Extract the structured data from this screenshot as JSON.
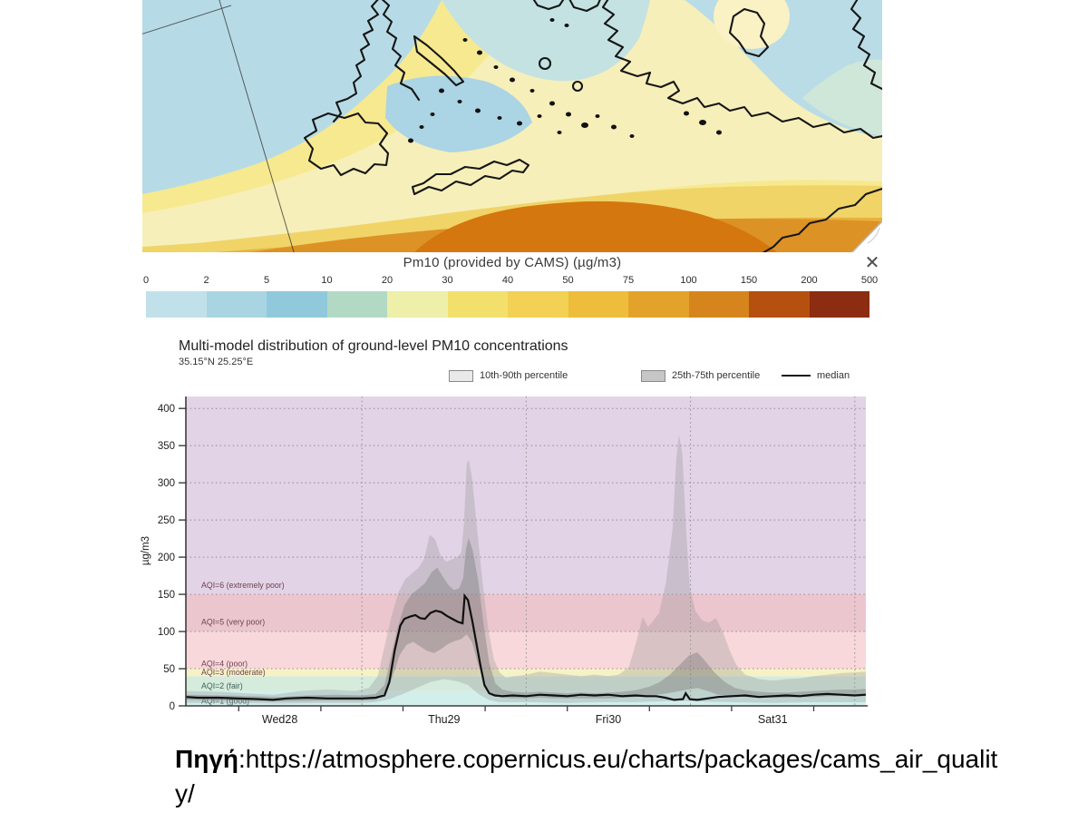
{
  "map": {
    "title": "Pm10 (provided by CAMS) (µg/m3)",
    "close_icon": "✕",
    "description": "Filled-contour PM10 forecast map over Greece, the Aegean Sea, Crete and western Turkey; low (blue) values to the north, high (orange/brown) values toward the south",
    "palette": [
      "#b7dbe6",
      "#c4e2e2",
      "#b9dce6",
      "#f7efb9",
      "#f7e98f",
      "#f0d468",
      "#e8b13d",
      "#dd9226",
      "#d4770f"
    ],
    "colorbar": {
      "labels": [
        "0",
        "2",
        "5",
        "10",
        "20",
        "30",
        "40",
        "50",
        "75",
        "100",
        "150",
        "200",
        "500"
      ],
      "colors": [
        "#c1e1ea",
        "#a9d5e2",
        "#90c9dc",
        "#b2d9c4",
        "#eeefa9",
        "#f3e06c",
        "#f2d154",
        "#edbd3b",
        "#e3a32a",
        "#d6851c",
        "#b5500f",
        "#8c2c10"
      ]
    }
  },
  "chart_data": {
    "type": "area",
    "title": "Multi-model distribution of ground-level PM10 concentrations",
    "subtitle": "35.15°N 25.25°E",
    "ylabel": "µg/m3",
    "ylim": [
      0,
      416
    ],
    "yticks": [
      0,
      50,
      100,
      150,
      200,
      250,
      300,
      350,
      400
    ],
    "ygrid": [
      50,
      100,
      150,
      200,
      250,
      300,
      350,
      400
    ],
    "x_unit": "hours from Wed 28 00:00",
    "x_domain_hours": [
      -1.7,
      97.6
    ],
    "xlabels": [
      {
        "label": "Wed28",
        "h": 12
      },
      {
        "label": "Thu29",
        "h": 36
      },
      {
        "label": "Fri30",
        "h": 60
      },
      {
        "label": "Sat31",
        "h": 84
      }
    ],
    "xticks_h": [
      6,
      18,
      30,
      42,
      54,
      66,
      78,
      90
    ],
    "day_boundaries_h": [
      24,
      48,
      72,
      96
    ],
    "grid": "dotted",
    "legend_position": "top",
    "legend": [
      {
        "label": "10th-90th percentile",
        "swatch": "#e9e9e9"
      },
      {
        "label": "25th-75th percentile",
        "swatch": "#c6c6c6"
      },
      {
        "label": "median",
        "swatch": "line"
      }
    ],
    "band_fill_10_90": "rgba(150,150,150,0.32)",
    "band_fill_25_75": "rgba(115,115,115,0.38)",
    "median_color": "#101010",
    "aqi_bands": [
      {
        "label": "AQI=1 (good)",
        "from": 0,
        "to": 20,
        "color": "#d2efec",
        "label_v": 7,
        "label_color": "#41605a"
      },
      {
        "label": "AQI=2 (fair)",
        "from": 20,
        "to": 40,
        "color": "#d5ebdc",
        "label_v": 27,
        "label_color": "#41605a"
      },
      {
        "label": "AQI=3 (moderate)",
        "from": 40,
        "to": 50,
        "color": "#f6f2c3",
        "label_v": 45,
        "label_color": "#6e4350"
      },
      {
        "label": "AQI=4 (poor)",
        "from": 50,
        "to": 100,
        "color": "#f8d8db",
        "label_v": 57,
        "label_color": "#6e4350"
      },
      {
        "label": "AQI=5 (very poor)",
        "from": 100,
        "to": 150,
        "color": "#ecc6cf",
        "label_v": 113,
        "label_color": "#6e4350"
      },
      {
        "label": "AQI=6 (extremely poor)",
        "from": 150,
        "to": 416,
        "color": "#e2d3e6",
        "label_v": 162,
        "label_color": "#6e4350"
      }
    ],
    "series": {
      "median": [
        [
          -1.7,
          12
        ],
        [
          0,
          11
        ],
        [
          3,
          11
        ],
        [
          6,
          10
        ],
        [
          9,
          9
        ],
        [
          11,
          8
        ],
        [
          13,
          10
        ],
        [
          16,
          11
        ],
        [
          19,
          10
        ],
        [
          22,
          10
        ],
        [
          24,
          10
        ],
        [
          26,
          11
        ],
        [
          27.3,
          14
        ],
        [
          28,
          32
        ],
        [
          28.8,
          75
        ],
        [
          29.6,
          108
        ],
        [
          30.2,
          117
        ],
        [
          31,
          120
        ],
        [
          31.8,
          122
        ],
        [
          32.5,
          118
        ],
        [
          33.2,
          117
        ],
        [
          34,
          125
        ],
        [
          34.8,
          128
        ],
        [
          35.6,
          126
        ],
        [
          36.4,
          121
        ],
        [
          37.2,
          117
        ],
        [
          38,
          113
        ],
        [
          38.7,
          111
        ],
        [
          39,
          148
        ],
        [
          39.5,
          142
        ],
        [
          40.1,
          115
        ],
        [
          40.7,
          85
        ],
        [
          41.3,
          55
        ],
        [
          41.9,
          28
        ],
        [
          42.6,
          17
        ],
        [
          43.4,
          14
        ],
        [
          44.5,
          13
        ],
        [
          46,
          14
        ],
        [
          48,
          13
        ],
        [
          50,
          15
        ],
        [
          52,
          14
        ],
        [
          54,
          13
        ],
        [
          56,
          15
        ],
        [
          58,
          14
        ],
        [
          60,
          15
        ],
        [
          62,
          13
        ],
        [
          64,
          14
        ],
        [
          65.5,
          13
        ],
        [
          67,
          13
        ],
        [
          68.3,
          11
        ],
        [
          69.6,
          8
        ],
        [
          70.9,
          9
        ],
        [
          71.3,
          17
        ],
        [
          71.9,
          9
        ],
        [
          73,
          8
        ],
        [
          74.5,
          10
        ],
        [
          76,
          12
        ],
        [
          78,
          13
        ],
        [
          80,
          14
        ],
        [
          82,
          12
        ],
        [
          84,
          13
        ],
        [
          86,
          14
        ],
        [
          88,
          13
        ],
        [
          90,
          15
        ],
        [
          92,
          16
        ],
        [
          94,
          15
        ],
        [
          96,
          14
        ],
        [
          97.6,
          15
        ]
      ],
      "p90": [
        [
          -1.7,
          20
        ],
        [
          3,
          19
        ],
        [
          7,
          17
        ],
        [
          11,
          15
        ],
        [
          15,
          20
        ],
        [
          19,
          22
        ],
        [
          23,
          20
        ],
        [
          25,
          24
        ],
        [
          26.3,
          40
        ],
        [
          27.3,
          80
        ],
        [
          28.3,
          120
        ],
        [
          29.3,
          152
        ],
        [
          30.3,
          170
        ],
        [
          31.3,
          178
        ],
        [
          32.3,
          186
        ],
        [
          33.1,
          198
        ],
        [
          33.9,
          230
        ],
        [
          34.7,
          224
        ],
        [
          35.5,
          202
        ],
        [
          36.3,
          194
        ],
        [
          37.1,
          197
        ],
        [
          37.9,
          200
        ],
        [
          38.5,
          206
        ],
        [
          38.9,
          245
        ],
        [
          39.3,
          325
        ],
        [
          39.6,
          331
        ],
        [
          40.1,
          305
        ],
        [
          40.9,
          230
        ],
        [
          41.7,
          160
        ],
        [
          42.5,
          100
        ],
        [
          43.3,
          62
        ],
        [
          44.1,
          45
        ],
        [
          45,
          38
        ],
        [
          46.5,
          40
        ],
        [
          48,
          42
        ],
        [
          50,
          46
        ],
        [
          52,
          44
        ],
        [
          54,
          42
        ],
        [
          56,
          40
        ],
        [
          58,
          42
        ],
        [
          60,
          40
        ],
        [
          61.5,
          42
        ],
        [
          63,
          52
        ],
        [
          64.2,
          90
        ],
        [
          65,
          120
        ],
        [
          65.8,
          106
        ],
        [
          66.6,
          115
        ],
        [
          67.4,
          125
        ],
        [
          68.4,
          165
        ],
        [
          69.4,
          240
        ],
        [
          69.9,
          330
        ],
        [
          70.3,
          365
        ],
        [
          70.8,
          340
        ],
        [
          71.4,
          230
        ],
        [
          71.9,
          160
        ],
        [
          72.7,
          128
        ],
        [
          73.7,
          115
        ],
        [
          74.7,
          112
        ],
        [
          75.7,
          118
        ],
        [
          76.7,
          100
        ],
        [
          77.7,
          75
        ],
        [
          78.7,
          55
        ],
        [
          80,
          42
        ],
        [
          82,
          36
        ],
        [
          84,
          34
        ],
        [
          86,
          36
        ],
        [
          88,
          37
        ],
        [
          90,
          40
        ],
        [
          92,
          42
        ],
        [
          94,
          44
        ],
        [
          96,
          45
        ],
        [
          97.6,
          46
        ]
      ],
      "p10": [
        [
          -1.7,
          4
        ],
        [
          6,
          4
        ],
        [
          12,
          3
        ],
        [
          18,
          4
        ],
        [
          24,
          4
        ],
        [
          26,
          5
        ],
        [
          28,
          9
        ],
        [
          30,
          16
        ],
        [
          32,
          24
        ],
        [
          34,
          32
        ],
        [
          36,
          36
        ],
        [
          38,
          33
        ],
        [
          39.5,
          28
        ],
        [
          41,
          16
        ],
        [
          42.5,
          8
        ],
        [
          44,
          5
        ],
        [
          48,
          5
        ],
        [
          54,
          4
        ],
        [
          60,
          5
        ],
        [
          64,
          5
        ],
        [
          67,
          6
        ],
        [
          70,
          7
        ],
        [
          73,
          6
        ],
        [
          78,
          5
        ],
        [
          84,
          4
        ],
        [
          90,
          5
        ],
        [
          96,
          5
        ],
        [
          97.6,
          5
        ]
      ],
      "p75": [
        [
          -1.7,
          15
        ],
        [
          4,
          14
        ],
        [
          8,
          13
        ],
        [
          12,
          12
        ],
        [
          16,
          14
        ],
        [
          20,
          15
        ],
        [
          24,
          14
        ],
        [
          26,
          16
        ],
        [
          27.3,
          28
        ],
        [
          28.2,
          65
        ],
        [
          29.2,
          105
        ],
        [
          30.2,
          135
        ],
        [
          31.2,
          150
        ],
        [
          32.2,
          157
        ],
        [
          33.2,
          165
        ],
        [
          34.2,
          180
        ],
        [
          35,
          186
        ],
        [
          35.8,
          174
        ],
        [
          36.6,
          163
        ],
        [
          37.4,
          156
        ],
        [
          38.2,
          158
        ],
        [
          38.8,
          172
        ],
        [
          39.2,
          212
        ],
        [
          39.6,
          226
        ],
        [
          40.2,
          208
        ],
        [
          41,
          168
        ],
        [
          41.8,
          108
        ],
        [
          42.6,
          58
        ],
        [
          43.5,
          30
        ],
        [
          44.5,
          22
        ],
        [
          46,
          19
        ],
        [
          48,
          18
        ],
        [
          50,
          19
        ],
        [
          52,
          18
        ],
        [
          54,
          17
        ],
        [
          56,
          18
        ],
        [
          58,
          17
        ],
        [
          60,
          18
        ],
        [
          62,
          19
        ],
        [
          64,
          21
        ],
        [
          66,
          26
        ],
        [
          67.5,
          32
        ],
        [
          69,
          42
        ],
        [
          70.5,
          56
        ],
        [
          71.8,
          68
        ],
        [
          73,
          72
        ],
        [
          74,
          62
        ],
        [
          75.5,
          45
        ],
        [
          77,
          32
        ],
        [
          78.5,
          24
        ],
        [
          80,
          21
        ],
        [
          82,
          19
        ],
        [
          84,
          18
        ],
        [
          86,
          18
        ],
        [
          88,
          19
        ],
        [
          90,
          20
        ],
        [
          92,
          21
        ],
        [
          94,
          22
        ],
        [
          96,
          22
        ],
        [
          97.6,
          23
        ]
      ],
      "p25": [
        [
          -1.7,
          8
        ],
        [
          6,
          7
        ],
        [
          12,
          6
        ],
        [
          18,
          7
        ],
        [
          24,
          7
        ],
        [
          26,
          8
        ],
        [
          27.5,
          16
        ],
        [
          28.5,
          40
        ],
        [
          29.5,
          68
        ],
        [
          30.5,
          82
        ],
        [
          31.5,
          86
        ],
        [
          32.5,
          80
        ],
        [
          33.5,
          74
        ],
        [
          34.5,
          71
        ],
        [
          35.5,
          76
        ],
        [
          36.5,
          83
        ],
        [
          37.5,
          87
        ],
        [
          38.5,
          90
        ],
        [
          39.3,
          96
        ],
        [
          40.1,
          85
        ],
        [
          41,
          55
        ],
        [
          42,
          28
        ],
        [
          43,
          15
        ],
        [
          44.5,
          11
        ],
        [
          46,
          10
        ],
        [
          48,
          10
        ],
        [
          50,
          11
        ],
        [
          52,
          10
        ],
        [
          54,
          10
        ],
        [
          56,
          10
        ],
        [
          58,
          10
        ],
        [
          60,
          10
        ],
        [
          62,
          11
        ],
        [
          64,
          12
        ],
        [
          66,
          14
        ],
        [
          68,
          16
        ],
        [
          70,
          19
        ],
        [
          71.5,
          22
        ],
        [
          73,
          24
        ],
        [
          74.5,
          20
        ],
        [
          76,
          15
        ],
        [
          78,
          13
        ],
        [
          80,
          12
        ],
        [
          82,
          11
        ],
        [
          84,
          11
        ],
        [
          86,
          11
        ],
        [
          88,
          12
        ],
        [
          90,
          12
        ],
        [
          92,
          13
        ],
        [
          94,
          13
        ],
        [
          96,
          13
        ],
        [
          97.6,
          13
        ]
      ]
    }
  },
  "caption": {
    "source_label": "Πηγή",
    "url": ":https://atmosphere.copernicus.eu/charts/packages/cams_air_quality/"
  }
}
